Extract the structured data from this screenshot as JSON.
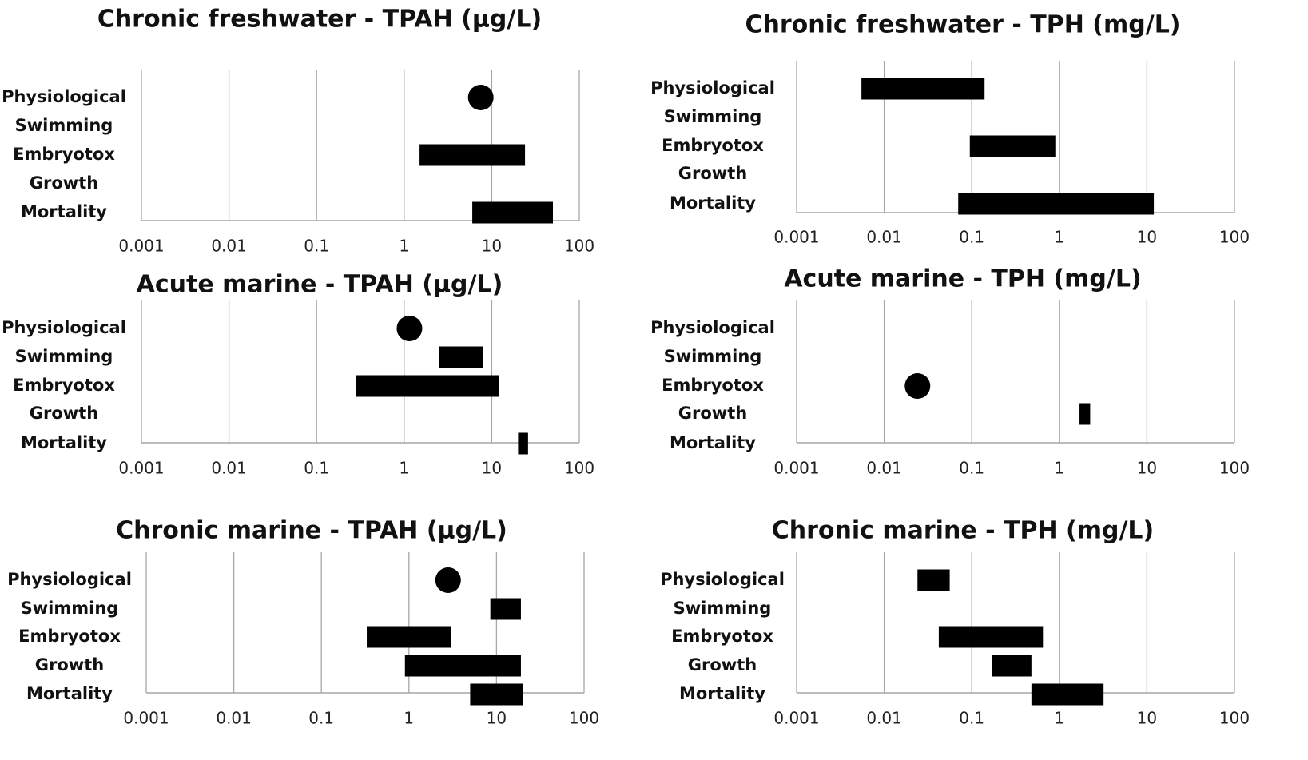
{
  "chart_data": [
    {
      "type": "bar",
      "title": "Chronic freshwater - TPAH (µg/L)",
      "x_scale": "log",
      "xlim": [
        0.001,
        100
      ],
      "x_ticks": [
        "0.001",
        "0.01",
        "0.1",
        "1",
        "10",
        "100"
      ],
      "categories": [
        "Physiological",
        "Swimming",
        "Embryotox",
        "Growth",
        "Mortality"
      ],
      "grid": true,
      "legend": "none",
      "ranges": [
        {
          "category": "Physiological",
          "point": 7.5
        },
        {
          "category": "Embryotox",
          "low": 1.5,
          "high": 24
        },
        {
          "category": "Mortality",
          "low": 6,
          "high": 50
        }
      ]
    },
    {
      "type": "bar",
      "title": "Chronic freshwater - TPH (mg/L)",
      "x_scale": "log",
      "xlim": [
        0.001,
        100
      ],
      "x_ticks": [
        "0.001",
        "0.01",
        "0.1",
        "1",
        "10",
        "100"
      ],
      "categories": [
        "Physiological",
        "Swimming",
        "Embryotox",
        "Growth",
        "Mortality"
      ],
      "grid": true,
      "legend": "none",
      "ranges": [
        {
          "category": "Physiological",
          "low": 0.0055,
          "high": 0.14
        },
        {
          "category": "Embryotox",
          "low": 0.095,
          "high": 0.9
        },
        {
          "category": "Mortality",
          "low": 0.07,
          "high": 12
        }
      ]
    },
    {
      "type": "bar",
      "title": "Acute marine - TPAH (µg/L)",
      "x_scale": "log",
      "xlim": [
        0.001,
        100
      ],
      "x_ticks": [
        "0.001",
        "0.01",
        "0.1",
        "1",
        "10",
        "100"
      ],
      "categories": [
        "Physiological",
        "Swimming",
        "Embryotox",
        "Growth",
        "Mortality"
      ],
      "grid": true,
      "legend": "none",
      "ranges": [
        {
          "category": "Physiological",
          "point": 1.15
        },
        {
          "category": "Swimming",
          "low": 2.5,
          "high": 8
        },
        {
          "category": "Embryotox",
          "low": 0.28,
          "high": 12
        },
        {
          "category": "Mortality",
          "low": 20,
          "high": 26
        }
      ]
    },
    {
      "type": "bar",
      "title": "Acute marine - TPH (mg/L)",
      "x_scale": "log",
      "xlim": [
        0.001,
        100
      ],
      "x_ticks": [
        "0.001",
        "0.01",
        "0.1",
        "1",
        "10",
        "100"
      ],
      "categories": [
        "Physiological",
        "Swimming",
        "Embryotox",
        "Growth",
        "Mortality"
      ],
      "grid": true,
      "legend": "none",
      "ranges": [
        {
          "category": "Embryotox",
          "point": 0.024
        },
        {
          "category": "Growth",
          "low": 1.7,
          "high": 2.25
        }
      ]
    },
    {
      "type": "bar",
      "title": "Chronic marine - TPAH (µg/L)",
      "x_scale": "log",
      "xlim": [
        0.001,
        100
      ],
      "x_ticks": [
        "0.001",
        "0.01",
        "0.1",
        "1",
        "10",
        "100"
      ],
      "categories": [
        "Physiological",
        "Swimming",
        "Embryotox",
        "Growth",
        "Mortality"
      ],
      "grid": true,
      "legend": "none",
      "ranges": [
        {
          "category": "Physiological",
          "point": 2.8
        },
        {
          "category": "Swimming",
          "low": 8.5,
          "high": 19
        },
        {
          "category": "Embryotox",
          "low": 0.33,
          "high": 3
        },
        {
          "category": "Growth",
          "low": 0.9,
          "high": 19
        },
        {
          "category": "Mortality",
          "low": 5,
          "high": 20
        }
      ]
    },
    {
      "type": "bar",
      "title": "Chronic marine - TPH (mg/L)",
      "x_scale": "log",
      "xlim": [
        0.001,
        100
      ],
      "x_ticks": [
        "0.001",
        "0.01",
        "0.1",
        "1",
        "10",
        "100"
      ],
      "categories": [
        "Physiological",
        "Swimming",
        "Embryotox",
        "Growth",
        "Mortality"
      ],
      "grid": true,
      "legend": "none",
      "ranges": [
        {
          "category": "Physiological",
          "low": 0.024,
          "high": 0.056
        },
        {
          "category": "Embryotox",
          "low": 0.042,
          "high": 0.65
        },
        {
          "category": "Growth",
          "low": 0.17,
          "high": 0.48
        },
        {
          "category": "Mortality",
          "low": 0.48,
          "high": 3.2
        }
      ]
    }
  ]
}
